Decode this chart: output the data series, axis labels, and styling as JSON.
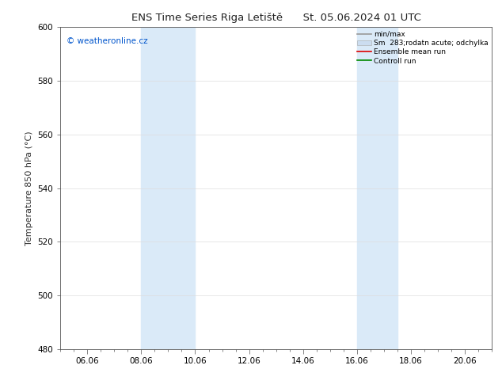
{
  "title_left": "ENS Time Series Riga Letiště",
  "title_right": "St. 05.06.2024 01 UTC",
  "ylabel": "Temperature 850 hPa (°C)",
  "ylim": [
    480,
    600
  ],
  "yticks": [
    480,
    500,
    520,
    540,
    560,
    580,
    600
  ],
  "xtick_labels": [
    "06.06",
    "08.06",
    "10.06",
    "12.06",
    "14.06",
    "16.06",
    "18.06",
    "20.06"
  ],
  "xtick_positions": [
    1,
    3,
    5,
    7,
    9,
    11,
    13,
    15
  ],
  "xlim": [
    0,
    16
  ],
  "shaded_bands": [
    {
      "xmin": 3.0,
      "xmax": 5.0
    },
    {
      "xmin": 11.0,
      "xmax": 12.5
    }
  ],
  "shade_color": "#daeaf8",
  "watermark_text": "© weatheronline.cz",
  "watermark_color": "#0055cc",
  "legend_entries": [
    {
      "label": "min/max",
      "color": "#999999",
      "lw": 1.2,
      "type": "line"
    },
    {
      "label": "Sm  283;rodatn acute; odchylka",
      "color": "#ccddf0",
      "lw": 6,
      "type": "band"
    },
    {
      "label": "Ensemble mean run",
      "color": "#dd0000",
      "lw": 1.2,
      "type": "line"
    },
    {
      "label": "Controll run",
      "color": "#008800",
      "lw": 1.2,
      "type": "line"
    }
  ],
  "bg_color": "#ffffff",
  "grid_color": "#dddddd",
  "axis_color": "#555555",
  "title_fontsize": 9.5,
  "label_fontsize": 8,
  "tick_fontsize": 7.5,
  "legend_fontsize": 6.5,
  "watermark_fontsize": 7.5
}
